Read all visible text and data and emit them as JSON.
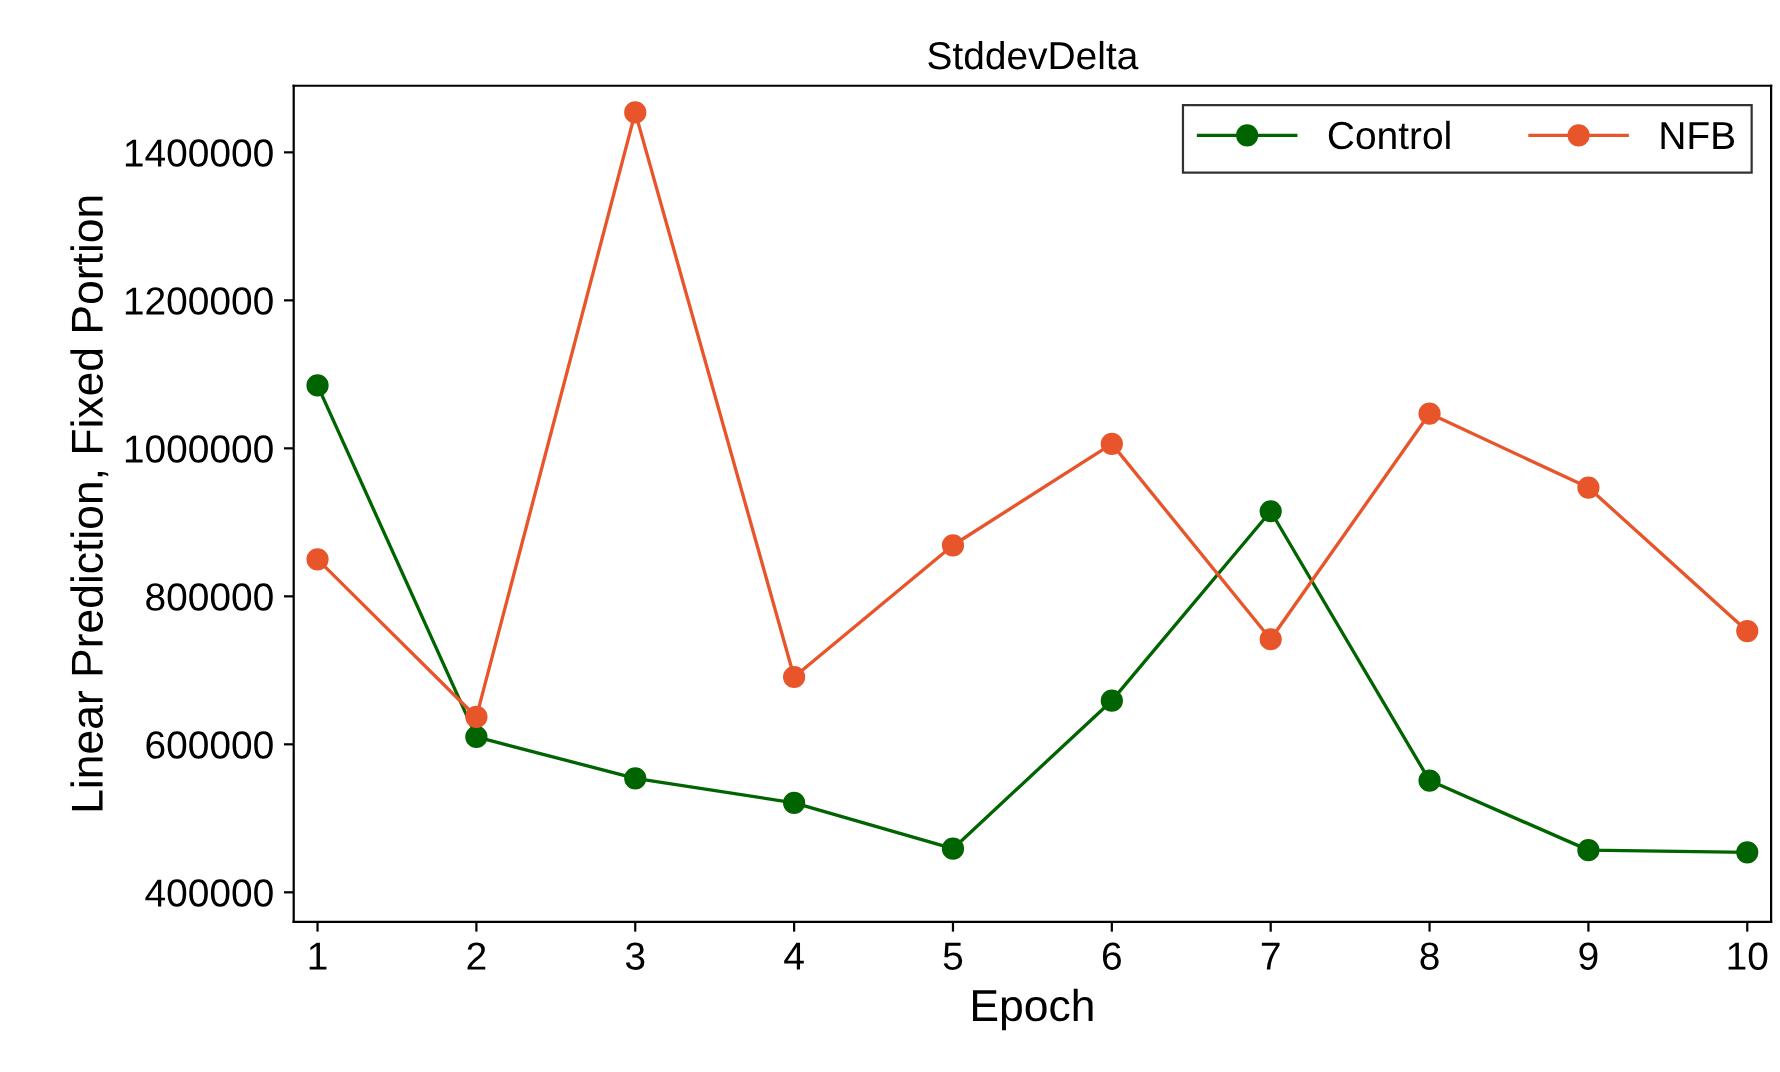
{
  "chart_data": {
    "type": "line",
    "title": "StddevDelta",
    "xlabel": "Epoch",
    "ylabel": "Linear Prediction, Fixed Portion",
    "x": [
      1,
      2,
      3,
      4,
      5,
      6,
      7,
      8,
      9,
      10
    ],
    "series": [
      {
        "name": "Control",
        "color": "#006400",
        "values": [
          1085000,
          610000,
          554000,
          521000,
          459000,
          659000,
          915000,
          551000,
          457000,
          454000
        ]
      },
      {
        "name": "NFB",
        "color": "#e8552a",
        "values": [
          850000,
          637000,
          1454000,
          691000,
          869000,
          1006000,
          742000,
          1047000,
          947000,
          753000
        ]
      }
    ],
    "xlim": [
      0.85,
      10.15
    ],
    "xticks": [
      1,
      2,
      3,
      4,
      5,
      6,
      7,
      8,
      9,
      10
    ],
    "ylim": [
      360000,
      1490000
    ],
    "yticks": [
      400000,
      600000,
      800000,
      1000000,
      1200000,
      1400000
    ],
    "grid": false,
    "legend": "top right",
    "marker": "circle",
    "line_style": "solid"
  }
}
